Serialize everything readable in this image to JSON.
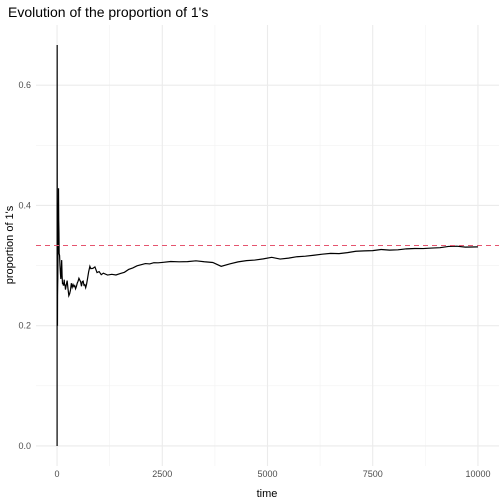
{
  "chart_data": {
    "type": "line",
    "title": "Evolution of the proportion of 1's",
    "xlabel": "time",
    "ylabel": "proportion of 1's",
    "xlim": [
      -500,
      10500
    ],
    "ylim": [
      -0.0333,
      0.7
    ],
    "xticks": [
      0,
      2500,
      5000,
      7500,
      10000
    ],
    "xtick_labels": [
      "0",
      "2500",
      "5000",
      "7500",
      "10000"
    ],
    "yticks": [
      0.0,
      0.2,
      0.4,
      0.6
    ],
    "ytick_labels": [
      "0.0",
      "0.2",
      "0.4",
      "0.6"
    ],
    "x_minor_gridlines": [
      1250,
      3750,
      6250,
      8750
    ],
    "y_minor_gridlines": [
      0.1,
      0.3,
      0.5
    ],
    "grid": true,
    "reference_line": {
      "y": 0.3333,
      "style": "dashed",
      "color": "#e5556f"
    },
    "line_color": "#000000",
    "series": [
      {
        "x": [
          1,
          2,
          3,
          4,
          5,
          6,
          8,
          10,
          12,
          15,
          18,
          20,
          25,
          30,
          35,
          40,
          45,
          50,
          60,
          70,
          80,
          90,
          100,
          110,
          120,
          130,
          140,
          150,
          160,
          170,
          180,
          190,
          200,
          220,
          240,
          260,
          280,
          300,
          320,
          340,
          360,
          380,
          400,
          420,
          440,
          460,
          480,
          500,
          520,
          540,
          560,
          580,
          600,
          620,
          640,
          660,
          680,
          700,
          720,
          750,
          780,
          800,
          850,
          900,
          950,
          1000,
          1050,
          1100,
          1200,
          1300,
          1400,
          1500,
          1600,
          1700,
          1800,
          1900,
          2000,
          2100,
          2200,
          2300,
          2400,
          2500,
          2700,
          2900,
          3100,
          3300,
          3500,
          3700,
          3900,
          4100,
          4300,
          4500,
          4700,
          4900,
          5100,
          5300,
          5500,
          5700,
          5900,
          6100,
          6300,
          6500,
          6700,
          6900,
          7100,
          7300,
          7500,
          7700,
          7900,
          8100,
          8300,
          8500,
          8700,
          8900,
          9100,
          9300,
          9500,
          9700,
          10000
        ],
        "values": [
          0.0,
          0.5,
          0.6667,
          0.5,
          0.4,
          0.333,
          0.25,
          0.2,
          0.25,
          0.2667,
          0.2778,
          0.3,
          0.36,
          0.3333,
          0.4286,
          0.375,
          0.3556,
          0.32,
          0.3167,
          0.3,
          0.2875,
          0.2778,
          0.29,
          0.3091,
          0.2833,
          0.2692,
          0.2714,
          0.2667,
          0.2688,
          0.2765,
          0.2667,
          0.2684,
          0.26,
          0.2682,
          0.275,
          0.2615,
          0.25,
          0.2533,
          0.2594,
          0.2706,
          0.2639,
          0.2684,
          0.265,
          0.2667,
          0.2614,
          0.2652,
          0.2708,
          0.274,
          0.2788,
          0.2759,
          0.2732,
          0.2655,
          0.2733,
          0.2742,
          0.2672,
          0.2682,
          0.2632,
          0.2686,
          0.2764,
          0.2893,
          0.2987,
          0.295,
          0.2953,
          0.2978,
          0.2884,
          0.29,
          0.2848,
          0.2873,
          0.2842,
          0.2854,
          0.2843,
          0.2867,
          0.2888,
          0.2935,
          0.2961,
          0.2995,
          0.3015,
          0.3033,
          0.3027,
          0.3048,
          0.3046,
          0.3052,
          0.3067,
          0.3062,
          0.3065,
          0.3079,
          0.3063,
          0.3051,
          0.2987,
          0.3027,
          0.3061,
          0.3082,
          0.3091,
          0.3111,
          0.3137,
          0.3108,
          0.3124,
          0.3147,
          0.3156,
          0.3171,
          0.3189,
          0.3202,
          0.3198,
          0.3215,
          0.3238,
          0.3244,
          0.3248,
          0.3267,
          0.3256,
          0.3262,
          0.3278,
          0.3284,
          0.3283,
          0.3291,
          0.3297,
          0.3318,
          0.3322,
          0.3307,
          0.331
        ]
      }
    ]
  }
}
